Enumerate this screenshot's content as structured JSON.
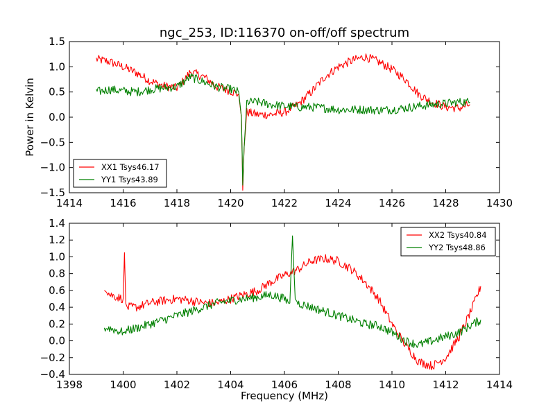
{
  "chart_data": [
    {
      "type": "line",
      "title": "ngc_253, ID:116370 on-off/off spectrum",
      "xlabel": "",
      "ylabel": "Power in Kelvin",
      "xlim": [
        1414,
        1430
      ],
      "ylim": [
        -1.5,
        1.5
      ],
      "xticks": [
        "1414",
        "1416",
        "1418",
        "1420",
        "1422",
        "1424",
        "1426",
        "1428",
        "1430"
      ],
      "yticks": [
        "−1.5",
        "−1.0",
        "−0.5",
        "0.0",
        "0.5",
        "1.0",
        "1.5"
      ],
      "legend_position": "lower-left",
      "grid": false,
      "series": [
        {
          "name": "XX1 Tsys46.17",
          "color": "#ff0000",
          "x": [
            1415.0,
            1415.5,
            1416.0,
            1416.5,
            1417.0,
            1417.5,
            1418.0,
            1418.3,
            1418.5,
            1419.0,
            1419.5,
            1420.0,
            1420.3,
            1420.4,
            1420.45,
            1420.5,
            1420.6,
            1421.0,
            1421.5,
            1422.0,
            1422.5,
            1423.0,
            1423.5,
            1424.0,
            1424.5,
            1425.0,
            1425.5,
            1426.0,
            1426.5,
            1427.0,
            1427.5,
            1428.0,
            1428.5,
            1428.9
          ],
          "y": [
            1.15,
            1.1,
            1.0,
            0.88,
            0.72,
            0.62,
            0.58,
            0.75,
            0.9,
            0.8,
            0.6,
            0.52,
            0.45,
            0.0,
            -1.45,
            -0.6,
            0.1,
            0.05,
            0.05,
            0.1,
            0.25,
            0.5,
            0.8,
            1.0,
            1.12,
            1.2,
            1.1,
            0.95,
            0.75,
            0.45,
            0.3,
            0.2,
            0.18,
            0.25
          ]
        },
        {
          "name": "YY1 Tsys43.89",
          "color": "#008000",
          "x": [
            1415.0,
            1415.5,
            1416.0,
            1416.5,
            1417.0,
            1417.5,
            1418.0,
            1418.3,
            1418.5,
            1419.0,
            1419.5,
            1420.0,
            1420.3,
            1420.4,
            1420.45,
            1420.5,
            1420.6,
            1421.0,
            1421.5,
            1422.0,
            1422.5,
            1423.0,
            1423.5,
            1424.0,
            1424.5,
            1425.0,
            1425.5,
            1426.0,
            1426.5,
            1427.0,
            1427.5,
            1428.0,
            1428.5,
            1428.9
          ],
          "y": [
            0.5,
            0.55,
            0.52,
            0.5,
            0.55,
            0.58,
            0.6,
            0.72,
            0.8,
            0.7,
            0.6,
            0.55,
            0.5,
            0.0,
            -1.35,
            -0.6,
            0.3,
            0.3,
            0.25,
            0.22,
            0.2,
            0.2,
            0.18,
            0.15,
            0.15,
            0.15,
            0.14,
            0.15,
            0.18,
            0.22,
            0.25,
            0.27,
            0.3,
            0.3
          ]
        }
      ]
    },
    {
      "type": "line",
      "title": "",
      "xlabel": "Frequency (MHz)",
      "ylabel": "",
      "xlim": [
        1398,
        1414
      ],
      "ylim": [
        -0.4,
        1.4
      ],
      "xticks": [
        "1398",
        "1400",
        "1402",
        "1404",
        "1406",
        "1408",
        "1410",
        "1412",
        "1414"
      ],
      "yticks": [
        "−0.4",
        "−0.2",
        "0.0",
        "0.2",
        "0.4",
        "0.6",
        "0.8",
        "1.0",
        "1.2",
        "1.4"
      ],
      "legend_position": "upper-right",
      "grid": false,
      "series": [
        {
          "name": "XX2 Tsys40.84",
          "color": "#ff0000",
          "x": [
            1399.3,
            1399.5,
            1400.0,
            1400.05,
            1400.1,
            1400.5,
            1401.0,
            1401.5,
            1402.0,
            1402.5,
            1403.0,
            1403.5,
            1404.0,
            1404.5,
            1405.0,
            1405.5,
            1406.0,
            1406.5,
            1407.0,
            1407.5,
            1408.0,
            1408.5,
            1409.0,
            1409.5,
            1410.0,
            1410.5,
            1411.0,
            1411.5,
            1412.0,
            1412.5,
            1413.0,
            1413.3
          ],
          "y": [
            0.65,
            0.55,
            0.5,
            1.05,
            0.4,
            0.4,
            0.45,
            0.48,
            0.5,
            0.48,
            0.45,
            0.45,
            0.5,
            0.55,
            0.6,
            0.7,
            0.78,
            0.85,
            0.95,
            0.98,
            0.95,
            0.85,
            0.7,
            0.5,
            0.2,
            -0.05,
            -0.25,
            -0.3,
            -0.2,
            0.05,
            0.4,
            0.65
          ]
        },
        {
          "name": "YY2 Tsys48.86",
          "color": "#008000",
          "x": [
            1399.3,
            1399.5,
            1400.0,
            1400.05,
            1400.1,
            1400.5,
            1401.0,
            1401.5,
            1402.0,
            1402.5,
            1403.0,
            1403.5,
            1404.0,
            1404.5,
            1405.0,
            1405.5,
            1406.0,
            1406.2,
            1406.3,
            1406.4,
            1406.5,
            1407.0,
            1407.5,
            1408.0,
            1408.5,
            1409.0,
            1409.5,
            1410.0,
            1410.5,
            1411.0,
            1411.5,
            1412.0,
            1412.5,
            1413.0,
            1413.3
          ],
          "y": [
            0.15,
            0.15,
            0.1,
            0.1,
            0.12,
            0.15,
            0.2,
            0.25,
            0.3,
            0.35,
            0.4,
            0.45,
            0.48,
            0.5,
            0.52,
            0.55,
            0.5,
            0.45,
            1.25,
            0.5,
            0.45,
            0.4,
            0.35,
            0.3,
            0.25,
            0.2,
            0.18,
            0.1,
            0.0,
            -0.05,
            0.0,
            0.05,
            0.1,
            0.2,
            0.25
          ]
        }
      ]
    }
  ]
}
